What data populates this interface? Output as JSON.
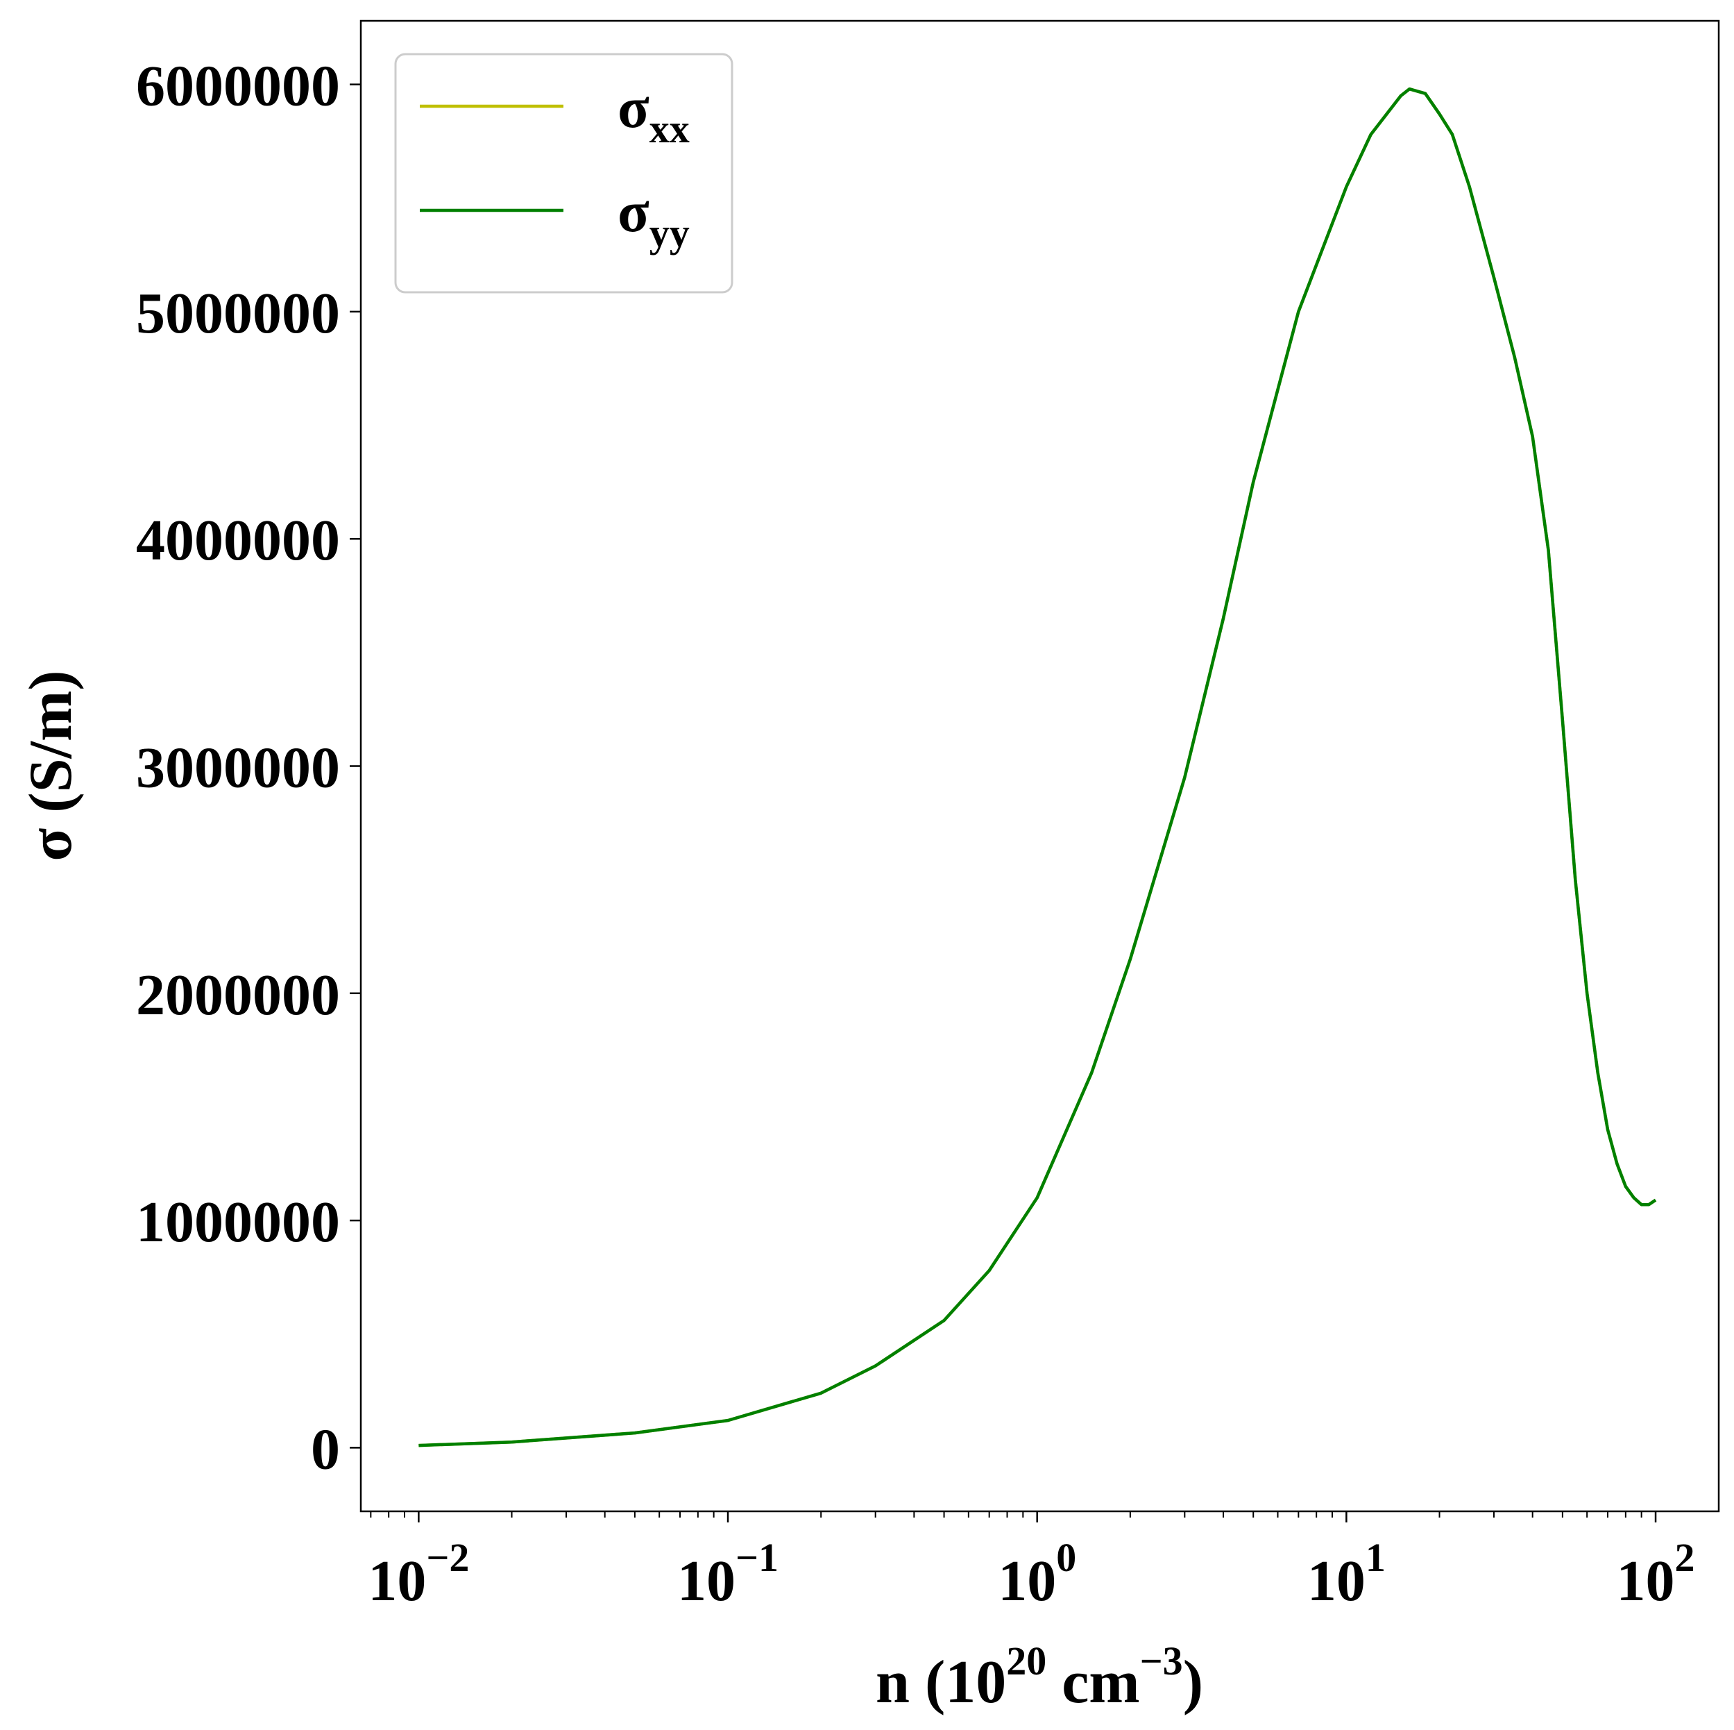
{
  "chart_data": {
    "type": "line",
    "xscale": "log",
    "xlim": [
      0.0065,
      160
    ],
    "ylim": [
      -280000,
      6280000
    ],
    "grid": false,
    "legend_position": "top-left",
    "xlabel": {
      "prefix": "n (10",
      "exp": "20",
      "middle": " cm",
      "exp2": "−3",
      "suffix": ")"
    },
    "ylabel": "σ (S/m)",
    "x_ticks": [
      {
        "value": 0.01,
        "base": "10",
        "exp": "−2"
      },
      {
        "value": 0.1,
        "base": "10",
        "exp": "−1"
      },
      {
        "value": 1,
        "base": "10",
        "exp": "0"
      },
      {
        "value": 10,
        "base": "10",
        "exp": "1"
      },
      {
        "value": 100,
        "base": "10",
        "exp": "2"
      }
    ],
    "y_ticks": [
      {
        "value": 0,
        "label": "0"
      },
      {
        "value": 1000000,
        "label": "1000000"
      },
      {
        "value": 2000000,
        "label": "2000000"
      },
      {
        "value": 3000000,
        "label": "3000000"
      },
      {
        "value": 4000000,
        "label": "4000000"
      },
      {
        "value": 5000000,
        "label": "5000000"
      },
      {
        "value": 6000000,
        "label": "6000000"
      }
    ],
    "series": [
      {
        "name": {
          "base": "σ",
          "sub": "xx"
        },
        "color": "#bfbf00",
        "x": [
          0.01,
          0.02,
          0.05,
          0.1,
          0.2,
          0.3,
          0.5,
          0.7,
          1.0,
          1.5,
          2.0,
          3.0,
          4.0,
          5.0,
          7.0,
          10.0,
          12.0,
          15.0,
          16.0,
          18.0,
          20.0,
          22.0,
          25.0,
          30.0,
          35.0,
          40.0,
          45.0,
          50.0,
          55.0,
          60.0,
          65.0,
          70.0,
          75.0,
          80.0,
          85.0,
          90.0,
          95.0,
          100.0
        ],
        "values": [
          10000,
          25000,
          65000,
          120000,
          240000,
          360000,
          560000,
          780000,
          1100000,
          1650000,
          2150000,
          2950000,
          3650000,
          4250000,
          5000000,
          5550000,
          5780000,
          5950000,
          5980000,
          5960000,
          5870000,
          5780000,
          5550000,
          5150000,
          4800000,
          4450000,
          3950000,
          3200000,
          2500000,
          2000000,
          1650000,
          1400000,
          1250000,
          1150000,
          1100000,
          1070000,
          1070000,
          1090000
        ]
      },
      {
        "name": {
          "base": "σ",
          "sub": "yy"
        },
        "color": "#008000",
        "x": [
          0.01,
          0.02,
          0.05,
          0.1,
          0.2,
          0.3,
          0.5,
          0.7,
          1.0,
          1.5,
          2.0,
          3.0,
          4.0,
          5.0,
          7.0,
          10.0,
          12.0,
          15.0,
          16.0,
          18.0,
          20.0,
          22.0,
          25.0,
          30.0,
          35.0,
          40.0,
          45.0,
          50.0,
          55.0,
          60.0,
          65.0,
          70.0,
          75.0,
          80.0,
          85.0,
          90.0,
          95.0,
          100.0
        ],
        "values": [
          10000,
          25000,
          65000,
          120000,
          240000,
          360000,
          560000,
          780000,
          1100000,
          1650000,
          2150000,
          2950000,
          3650000,
          4250000,
          5000000,
          5550000,
          5780000,
          5950000,
          5980000,
          5960000,
          5870000,
          5780000,
          5550000,
          5150000,
          4800000,
          4450000,
          3950000,
          3200000,
          2500000,
          2000000,
          1650000,
          1400000,
          1250000,
          1150000,
          1100000,
          1070000,
          1070000,
          1090000
        ]
      }
    ]
  }
}
